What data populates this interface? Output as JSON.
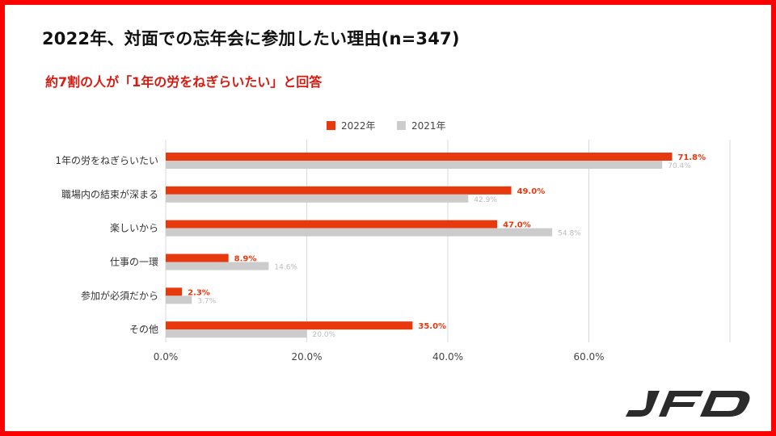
{
  "title": "2022年、対面での忘年会に参加したい理由(n=347)",
  "subtitle": "約7割の人が「1年の労をねぎらいたい」と回答",
  "logo_text": "JFD",
  "colors": {
    "series_2022": "#e8380d",
    "series_2021": "#cccccc",
    "frame": "#ff0000",
    "subtitle": "#d81b10"
  },
  "chart_data": {
    "type": "bar",
    "orientation": "horizontal",
    "categories": [
      "1年の労をねぎらいたい",
      "職場内の結束が深まる",
      "楽しいから",
      "仕事の一環",
      "参加が必須だから",
      "その他"
    ],
    "series": [
      {
        "name": "2022年",
        "values": [
          71.8,
          49.0,
          47.0,
          8.9,
          2.3,
          35.0
        ],
        "labels": [
          "71.8%",
          "49.0%",
          "47.0%",
          "8.9%",
          "2.3%",
          "35.0%"
        ]
      },
      {
        "name": "2021年",
        "values": [
          70.4,
          42.9,
          54.8,
          14.6,
          3.7,
          20.0
        ],
        "labels": [
          "70.4%",
          "42.9%",
          "54.8%",
          "14.6%",
          "3.7%",
          "20.0%"
        ]
      }
    ],
    "x_ticks": [
      0,
      20,
      40,
      60,
      80
    ],
    "x_tick_labels": [
      "0.0%",
      "20.0%",
      "40.0%",
      "60.0%",
      ""
    ],
    "xlim": [
      0,
      80
    ],
    "legend_position": "top-center",
    "grid": true
  }
}
